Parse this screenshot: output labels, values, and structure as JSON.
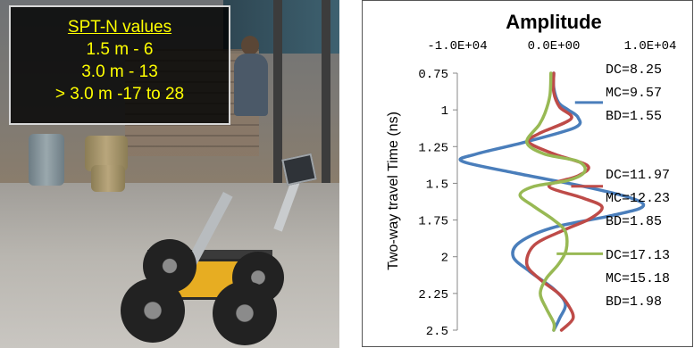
{
  "photo": {
    "overlay": {
      "title": "SPT-N values",
      "lines": [
        "1.5 m - 6",
        "3.0 m - 13",
        "> 3.0 m -17 to 28"
      ]
    }
  },
  "chart_data": {
    "type": "line",
    "title": "Amplitude",
    "xlabel": "Amplitude",
    "ylabel": "Two-way travel Time (ns)",
    "x_axis_position": "top",
    "xlim": [
      -10000,
      10000
    ],
    "x_ticks": [
      "-1.0E+04",
      "0.0E+00",
      "1.0E+04"
    ],
    "ylim": [
      2.5,
      0.75
    ],
    "y_reversed": true,
    "y_ticks": [
      "0.75",
      "1",
      "1.25",
      "1.5",
      "1.75",
      "2",
      "2.25",
      "2.5"
    ],
    "grid": false,
    "legend": "right",
    "series": [
      {
        "name": "DC",
        "color": "#4a7ebb",
        "points": [
          [
            0,
            0.75
          ],
          [
            0,
            0.85
          ],
          [
            500,
            0.95
          ],
          [
            1500,
            1.0
          ],
          [
            2500,
            1.05
          ],
          [
            2200,
            1.12
          ],
          [
            -3000,
            1.22
          ],
          [
            -8000,
            1.3
          ],
          [
            -9500,
            1.35
          ],
          [
            -4000,
            1.43
          ],
          [
            3000,
            1.52
          ],
          [
            8000,
            1.6
          ],
          [
            9200,
            1.66
          ],
          [
            6000,
            1.72
          ],
          [
            0,
            1.8
          ],
          [
            -3500,
            1.9
          ],
          [
            -4200,
            2.0
          ],
          [
            -2500,
            2.1
          ],
          [
            0,
            2.22
          ],
          [
            1200,
            2.32
          ],
          [
            600,
            2.42
          ],
          [
            0,
            2.5
          ]
        ],
        "annotation": [
          "DC=8.25",
          "MC=9.57",
          "BD=1.55"
        ]
      },
      {
        "name": "MC",
        "color": "#be4b48",
        "points": [
          [
            0,
            0.75
          ],
          [
            0,
            0.88
          ],
          [
            600,
            0.98
          ],
          [
            1800,
            1.06
          ],
          [
            -1500,
            1.16
          ],
          [
            -2600,
            1.22
          ],
          [
            0,
            1.3
          ],
          [
            3500,
            1.38
          ],
          [
            2500,
            1.45
          ],
          [
            -500,
            1.52
          ],
          [
            3000,
            1.6
          ],
          [
            5000,
            1.66
          ],
          [
            3800,
            1.74
          ],
          [
            1000,
            1.82
          ],
          [
            -2000,
            1.92
          ],
          [
            -2800,
            2.05
          ],
          [
            -1500,
            2.15
          ],
          [
            500,
            2.25
          ],
          [
            1500,
            2.33
          ],
          [
            2000,
            2.42
          ],
          [
            800,
            2.5
          ]
        ],
        "annotation": [
          "DC=11.97",
          "MC=12.23",
          "BD=1.85"
        ]
      },
      {
        "name": "BD",
        "color": "#98b954",
        "points": [
          [
            -300,
            0.75
          ],
          [
            -400,
            0.9
          ],
          [
            -900,
            1.02
          ],
          [
            -1500,
            1.1
          ],
          [
            -2800,
            1.22
          ],
          [
            -1000,
            1.3
          ],
          [
            2500,
            1.35
          ],
          [
            3200,
            1.42
          ],
          [
            1500,
            1.48
          ],
          [
            -2000,
            1.52
          ],
          [
            -3500,
            1.58
          ],
          [
            -2000,
            1.66
          ],
          [
            0,
            1.75
          ],
          [
            1200,
            1.83
          ],
          [
            1300,
            1.95
          ],
          [
            500,
            2.05
          ],
          [
            -800,
            2.15
          ],
          [
            -1400,
            2.25
          ],
          [
            -800,
            2.35
          ],
          [
            0,
            2.45
          ],
          [
            0,
            2.5
          ]
        ],
        "annotation": [
          "DC=17.13",
          "MC=15.18",
          "BD=1.98"
        ]
      }
    ]
  }
}
